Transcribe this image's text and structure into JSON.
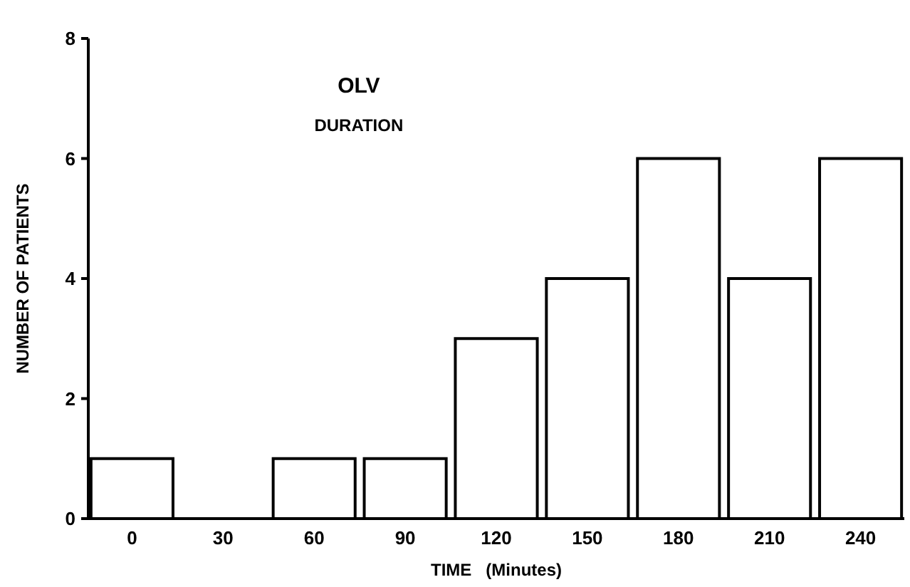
{
  "chart_data": {
    "type": "bar",
    "title": "OLV",
    "subtitle": "DURATION",
    "xlabel": "TIME   (Minutes)",
    "ylabel": "NUMBER OF PATIENTS",
    "categories": [
      "0",
      "30",
      "60",
      "90",
      "120",
      "150",
      "180",
      "210",
      "240"
    ],
    "values": [
      1,
      0,
      1,
      1,
      3,
      4,
      6,
      4,
      6
    ],
    "color": "#ffffff",
    "ylim": [
      0,
      8
    ],
    "yticks": [
      0,
      2,
      4,
      6,
      8
    ]
  }
}
